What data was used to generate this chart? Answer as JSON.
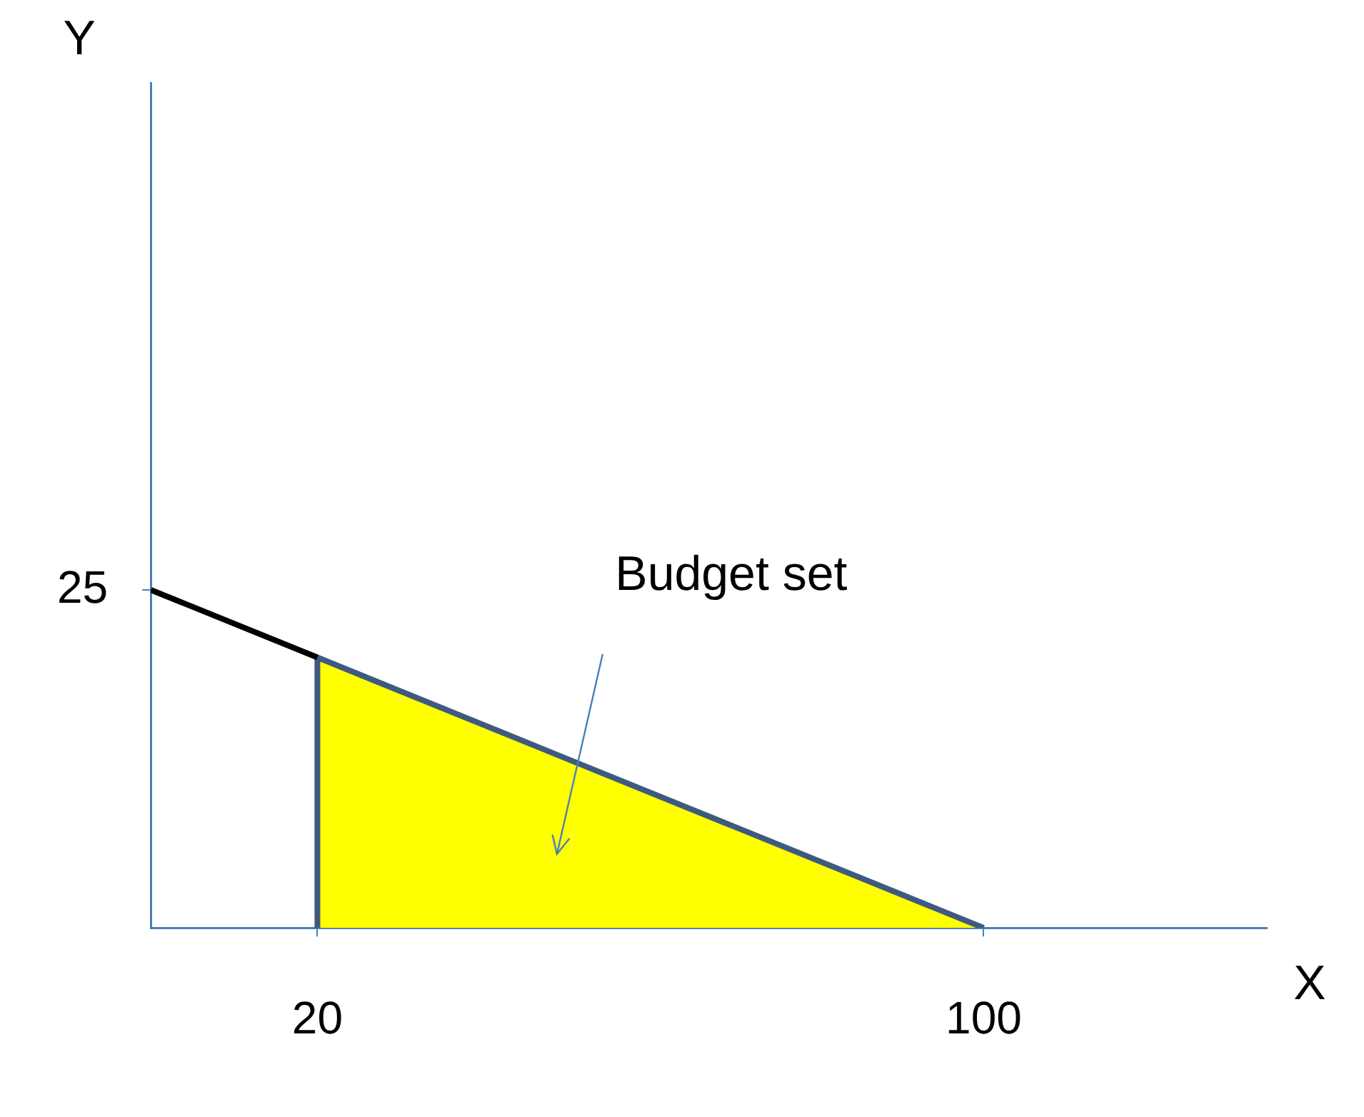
{
  "chart_data": {
    "type": "line",
    "xlabel": "X",
    "ylabel": "Y",
    "annotations": [
      "Budget set"
    ],
    "xlim": [
      0,
      134
    ],
    "ylim": [
      0,
      62.5
    ],
    "xticks": [
      20,
      100
    ],
    "yticks": [
      25
    ],
    "grid": false,
    "legend": false,
    "series": [
      {
        "color": "#000000",
        "x": [
          0,
          20
        ],
        "values": [
          25,
          20
        ]
      },
      {
        "type": "area",
        "color": "#ffff00",
        "x": [
          20,
          20,
          100
        ],
        "values": [
          0,
          20,
          0
        ]
      }
    ]
  }
}
